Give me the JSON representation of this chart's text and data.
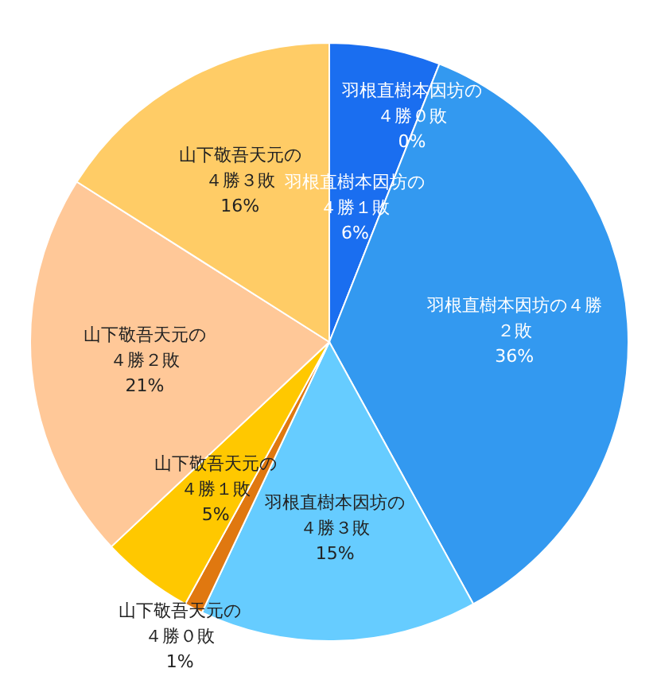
{
  "chart_data": {
    "type": "pie",
    "categories": [
      "羽根直樹本因坊の４勝０敗",
      "羽根直樹本因坊の４勝１敗",
      "羽根直樹本因坊の４勝２敗",
      "羽根直樹本因坊の４勝３敗",
      "山下敬吾天元の４勝０敗",
      "山下敬吾天元の４勝１敗",
      "山下敬吾天元の４勝２敗",
      "山下敬吾天元の４勝３敗"
    ],
    "values": [
      0,
      6,
      36,
      15,
      1,
      5,
      21,
      16
    ],
    "value_labels": [
      "0%",
      "6%",
      "36%",
      "15%",
      "1%",
      "5%",
      "21%",
      "16%"
    ],
    "colors": [
      "#0046d8",
      "#1a6ef0",
      "#3399f0",
      "#66ccff",
      "#e07810",
      "#ffc800",
      "#ffc898",
      "#ffcc66"
    ]
  }
}
